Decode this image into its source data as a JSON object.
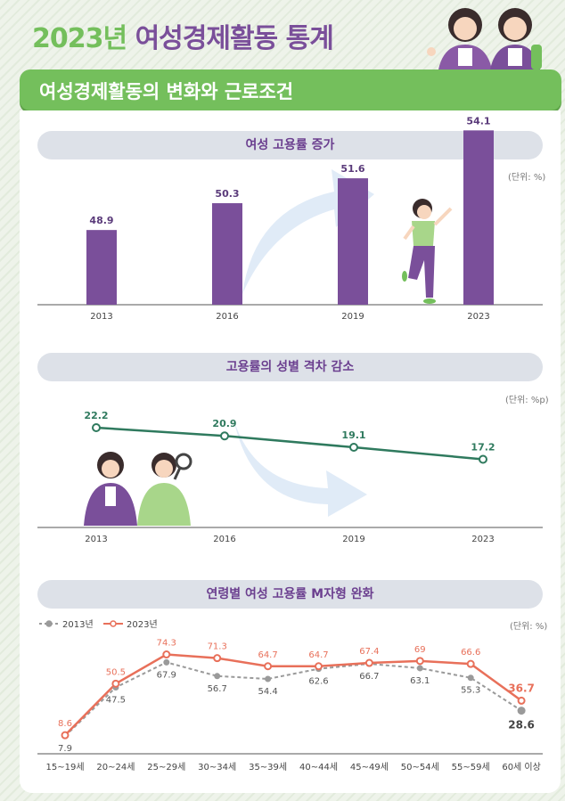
{
  "page": {
    "title_year": "2023년",
    "title_rest": "여성경제활동 통계",
    "banner": "여성경제활동의 변화와 근로조건"
  },
  "colors": {
    "green": "#74bf5c",
    "purple": "#7a4f9a",
    "teal": "#2f7a5e",
    "coral": "#e8705a",
    "gray": "#9a9a9a"
  },
  "chart_data": [
    {
      "type": "bar",
      "title": "여성 고용률 증가",
      "unit": "(단위: %)",
      "categories": [
        "2013",
        "2016",
        "2019",
        "2023"
      ],
      "values": [
        48.9,
        50.3,
        51.6,
        54.1
      ]
    },
    {
      "type": "line",
      "title": "고용률의 성별 격차 감소",
      "unit": "(단위: %p)",
      "categories": [
        "2013",
        "2016",
        "2019",
        "2023"
      ],
      "values": [
        22.2,
        20.9,
        19.1,
        17.2
      ]
    },
    {
      "type": "line",
      "title": "연령별 여성 고용률 M자형 완화",
      "unit": "(단위: %)",
      "categories": [
        "15~19세",
        "20~24세",
        "25~29세",
        "30~34세",
        "35~39세",
        "40~44세",
        "45~49세",
        "50~54세",
        "55~59세",
        "60세 이상"
      ],
      "series": [
        {
          "name": "2013년",
          "values": [
            7.9,
            47.5,
            67.9,
            56.7,
            54.4,
            62.6,
            66.7,
            63.1,
            55.3,
            28.6
          ]
        },
        {
          "name": "2023년",
          "values": [
            8.6,
            50.5,
            74.3,
            71.3,
            64.7,
            64.7,
            67.4,
            69,
            66.6,
            36.7
          ]
        }
      ]
    }
  ]
}
